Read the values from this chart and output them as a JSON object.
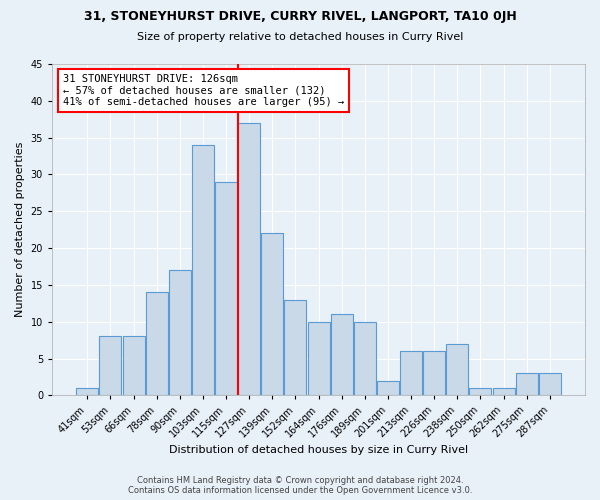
{
  "title1": "31, STONEYHURST DRIVE, CURRY RIVEL, LANGPORT, TA10 0JH",
  "title2": "Size of property relative to detached houses in Curry Rivel",
  "xlabel": "Distribution of detached houses by size in Curry Rivel",
  "ylabel": "Number of detached properties",
  "bin_labels": [
    "41sqm",
    "53sqm",
    "66sqm",
    "78sqm",
    "90sqm",
    "103sqm",
    "115sqm",
    "127sqm",
    "139sqm",
    "152sqm",
    "164sqm",
    "176sqm",
    "189sqm",
    "201sqm",
    "213sqm",
    "226sqm",
    "238sqm",
    "250sqm",
    "262sqm",
    "275sqm",
    "287sqm"
  ],
  "values": [
    1,
    8,
    8,
    14,
    17,
    34,
    29,
    37,
    22,
    13,
    10,
    11,
    10,
    2,
    6,
    6,
    7,
    1,
    1,
    3,
    3
  ],
  "bar_color": "#c9d9e8",
  "bar_edge_color": "#5b9bd5",
  "red_line_x": 6.5,
  "annotation_line1": "31 STONEYHURST DRIVE: 126sqm",
  "annotation_line2": "← 57% of detached houses are smaller (132)",
  "annotation_line3": "41% of semi-detached houses are larger (95) →",
  "ylim": [
    0,
    45
  ],
  "yticks": [
    0,
    5,
    10,
    15,
    20,
    25,
    30,
    35,
    40,
    45
  ],
  "footer": "Contains HM Land Registry data © Crown copyright and database right 2024.\nContains OS data information licensed under the Open Government Licence v3.0.",
  "bg_color": "#e8f0f8",
  "plot_bg_color": "#e8f0f8"
}
